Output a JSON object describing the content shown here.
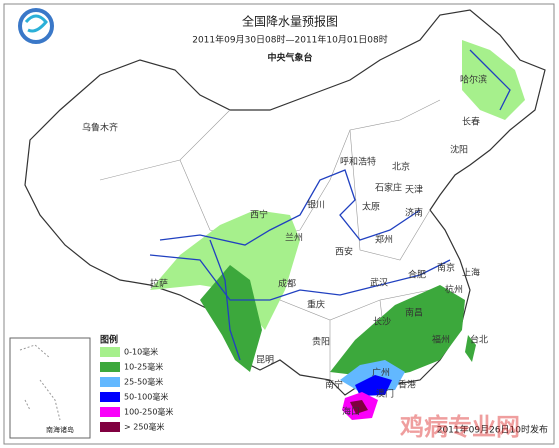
{
  "header": {
    "title": "全国降水量预报图",
    "period": "2011年09月30日08时—2011年10月01日08时",
    "agency": "中央气象台"
  },
  "cities": [
    "哈尔滨",
    "长春",
    "乌鲁木齐",
    "沈阳",
    "呼和浩特",
    "北京",
    "天津",
    "石家庄",
    "银川",
    "太原",
    "济南",
    "西宁",
    "兰州",
    "郑州",
    "西安",
    "合肥",
    "南京",
    "上海",
    "拉萨",
    "成都",
    "武汉",
    "杭州",
    "重庆",
    "长沙",
    "南昌",
    "福州",
    "贵阳",
    "昆明",
    "台北",
    "南宁",
    "广州",
    "香港",
    "澳门",
    "海口"
  ],
  "legend": {
    "title": "图例",
    "items": [
      {
        "label": "0-10毫米",
        "color": "#a6f08c"
      },
      {
        "label": "10-25毫米",
        "color": "#3ca83c"
      },
      {
        "label": "25-50毫米",
        "color": "#62b8ff"
      },
      {
        "label": "50-100毫米",
        "color": "#0000fe"
      },
      {
        "label": "100-250毫米",
        "color": "#fa00fa"
      },
      {
        "label": "> 250毫米",
        "color": "#800040"
      }
    ]
  },
  "inset": "南海诸岛",
  "footer": {
    "issued": "2011年09月26日10时发布",
    "watermark": "鸡病专业网"
  }
}
